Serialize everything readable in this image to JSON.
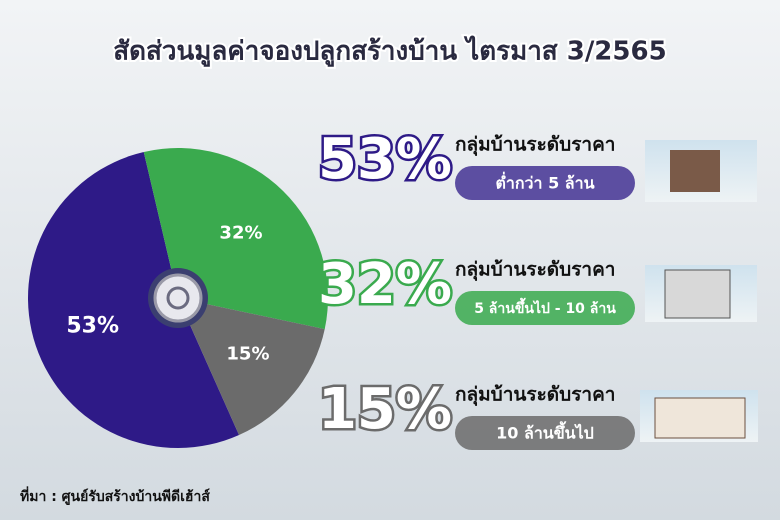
{
  "chart_data": {
    "type": "pie",
    "title": "สัดส่วนมูลค่าจองปลูกสร้างบ้าน ไตรมาส 3/2565",
    "categories": [
      "ต่ำกว่า 5 ล้าน",
      "5 ล้านขึ้นไป - 10 ล้าน",
      "10 ล้านขึ้นไป"
    ],
    "values": [
      53,
      32,
      15
    ],
    "value_labels": [
      "53%",
      "32%",
      "15%"
    ],
    "colors": [
      "#2e1a87",
      "#3aaa4e",
      "#6b6b6b"
    ],
    "group_labels": [
      "กลุ่มบ้านระดับราคา",
      "กลุ่มบ้านระดับราคา",
      "กลุ่มบ้านระดับราคา"
    ],
    "source": "ที่มา : ศูนย์รับสร้างบ้านพีดีเฮ้าส์"
  }
}
